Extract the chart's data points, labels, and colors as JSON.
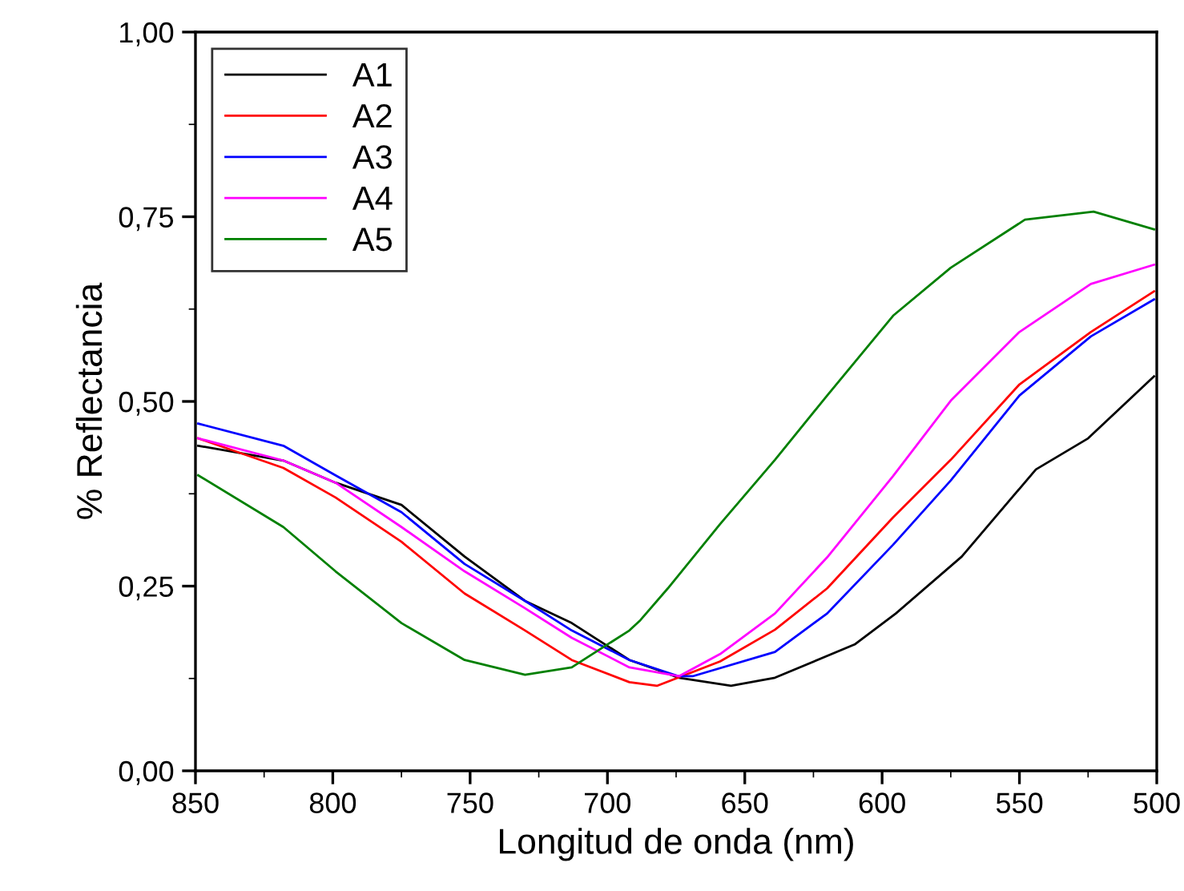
{
  "chart_data": {
    "type": "line",
    "xlabel": "Longitud de onda (nm)",
    "ylabel": "% Reflectancia",
    "xlim": [
      850,
      500
    ],
    "xticks": [
      850,
      800,
      750,
      700,
      650,
      600,
      550,
      500
    ],
    "ylim": [
      0,
      1
    ],
    "yticks": [
      {
        "value": 0,
        "label": "0,00"
      },
      {
        "value": 0.25,
        "label": "0,25"
      },
      {
        "value": 0.5,
        "label": "0,50"
      },
      {
        "value": 0.75,
        "label": "0,75"
      },
      {
        "value": 1,
        "label": "1,00"
      }
    ],
    "legend": "top left",
    "grid": false,
    "marker": "none",
    "line_style": "solid",
    "series": [
      {
        "name": "A1",
        "color": "#000000",
        "x": [
          849,
          818,
          799,
          775,
          752,
          730,
          713,
          692,
          682,
          674,
          655,
          639,
          610,
          595,
          571,
          544,
          525,
          501
        ],
        "values": [
          0.44,
          0.42,
          0.39,
          0.36,
          0.29,
          0.23,
          0.2,
          0.15,
          0.137,
          0.126,
          0.115,
          0.126,
          0.171,
          0.213,
          0.29,
          0.408,
          0.45,
          0.534
        ]
      },
      {
        "name": "A2",
        "color": "#ff0000",
        "x": [
          849,
          818,
          799,
          775,
          752,
          730,
          713,
          692,
          682,
          659,
          639,
          620,
          596,
          575,
          550,
          524,
          501
        ],
        "values": [
          0.45,
          0.41,
          0.37,
          0.31,
          0.24,
          0.19,
          0.15,
          0.12,
          0.115,
          0.148,
          0.191,
          0.247,
          0.343,
          0.421,
          0.523,
          0.594,
          0.649
        ]
      },
      {
        "name": "A3",
        "color": "#0000ff",
        "x": [
          849,
          818,
          799,
          775,
          752,
          730,
          713,
          692,
          674,
          669,
          639,
          620,
          596,
          575,
          550,
          524,
          501
        ],
        "values": [
          0.47,
          0.44,
          0.4,
          0.35,
          0.28,
          0.23,
          0.19,
          0.15,
          0.128,
          0.128,
          0.161,
          0.213,
          0.306,
          0.393,
          0.508,
          0.588,
          0.638
        ]
      },
      {
        "name": "A4",
        "color": "#ff00ff",
        "x": [
          849,
          818,
          799,
          775,
          752,
          730,
          713,
          692,
          674,
          659,
          639,
          620,
          596,
          575,
          550,
          524,
          501
        ],
        "values": [
          0.45,
          0.42,
          0.39,
          0.33,
          0.27,
          0.22,
          0.18,
          0.14,
          0.128,
          0.158,
          0.213,
          0.289,
          0.399,
          0.501,
          0.594,
          0.659,
          0.685
        ]
      },
      {
        "name": "A5",
        "color": "#008000",
        "x": [
          849,
          818,
          799,
          775,
          752,
          730,
          713,
          692,
          688,
          678,
          659,
          639,
          620,
          596,
          575,
          548,
          523,
          501
        ],
        "values": [
          0.4,
          0.33,
          0.27,
          0.2,
          0.15,
          0.13,
          0.14,
          0.19,
          0.204,
          0.247,
          0.334,
          0.421,
          0.508,
          0.616,
          0.681,
          0.746,
          0.757,
          0.733
        ]
      }
    ]
  }
}
